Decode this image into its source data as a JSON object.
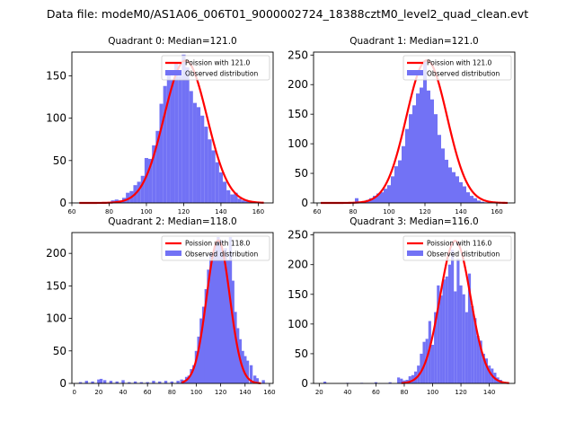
{
  "figure": {
    "suptitle": "Data file: modeM0/AS1A06_006T01_9000002724_18388cztM0_level2_quad_clean.evt"
  },
  "colors": {
    "hist": "#7272f5",
    "curve": "#ff0000",
    "axis": "#000000"
  },
  "chart_data": [
    {
      "type": "bar",
      "title": "Quadrant 0: Median=121.0",
      "xlim": [
        60,
        168
      ],
      "ylim": [
        0,
        178
      ],
      "xticks": [
        60,
        80,
        100,
        120,
        140,
        160
      ],
      "yticks": [
        0,
        50,
        100,
        150
      ],
      "legend": {
        "placement": "top-right",
        "curve_label": "Poission with 121.0",
        "hist_label": "Observed distribution"
      },
      "poisson_mean": 121.0,
      "curve_peak": 168,
      "curve_sigma": 11.5,
      "curve_x_range": [
        64,
        163
      ],
      "bin_width": 2,
      "bins_x": [
        78,
        80,
        82,
        84,
        86,
        88,
        90,
        92,
        94,
        96,
        98,
        100,
        102,
        104,
        106,
        108,
        110,
        112,
        114,
        116,
        118,
        120,
        122,
        124,
        126,
        128,
        130,
        132,
        134,
        136,
        138,
        140,
        142,
        144,
        146,
        148,
        150,
        152,
        154,
        156,
        158,
        160
      ],
      "counts": [
        0,
        1,
        3,
        4,
        3,
        6,
        12,
        14,
        21,
        25,
        32,
        53,
        52,
        68,
        85,
        117,
        138,
        151,
        145,
        166,
        150,
        175,
        160,
        132,
        118,
        113,
        103,
        90,
        75,
        62,
        48,
        36,
        25,
        15,
        10,
        12,
        5,
        3,
        2,
        1,
        0,
        0
      ]
    },
    {
      "type": "bar",
      "title": "Quadrant 1: Median=121.0",
      "xlim": [
        58,
        170
      ],
      "ylim": [
        0,
        255
      ],
      "xticks": [
        60,
        80,
        100,
        120,
        140,
        160
      ],
      "yticks": [
        0,
        50,
        100,
        150,
        200,
        250
      ],
      "legend": {
        "placement": "top-right",
        "curve_label": "Poission with 121.0",
        "hist_label": "Observed distribution"
      },
      "poisson_mean": 121.0,
      "curve_peak": 241,
      "curve_sigma": 11.3,
      "curve_x_range": [
        62,
        166
      ],
      "bin_width": 2,
      "bins_x": [
        82,
        84,
        86,
        88,
        90,
        92,
        94,
        96,
        98,
        100,
        102,
        104,
        106,
        108,
        110,
        112,
        114,
        116,
        118,
        120,
        122,
        124,
        126,
        128,
        130,
        132,
        134,
        136,
        138,
        140,
        142,
        144,
        146,
        148,
        150,
        152,
        154,
        156
      ],
      "counts": [
        8,
        0,
        2,
        5,
        8,
        12,
        16,
        18,
        24,
        30,
        45,
        62,
        72,
        96,
        125,
        150,
        165,
        185,
        195,
        240,
        190,
        175,
        150,
        115,
        92,
        73,
        60,
        52,
        45,
        35,
        28,
        18,
        12,
        8,
        4,
        2,
        1,
        0
      ]
    },
    {
      "type": "bar",
      "title": "Quadrant 2: Median=118.0",
      "xlim": [
        -2,
        163
      ],
      "ylim": [
        0,
        232
      ],
      "xticks": [
        0,
        20,
        40,
        60,
        80,
        100,
        120,
        140,
        160
      ],
      "yticks": [
        0,
        50,
        100,
        150,
        200
      ],
      "legend": {
        "placement": "top-right",
        "curve_label": "Poission with 118.0",
        "hist_label": "Observed distribution"
      },
      "poisson_mean": 118.0,
      "curve_peak": 220,
      "curve_sigma": 9.5,
      "curve_x_range": [
        88,
        153
      ],
      "bin_width": 2.5,
      "bins_x": [
        5,
        10,
        15,
        20,
        22,
        25,
        30,
        35,
        40,
        45,
        50,
        55,
        60,
        65,
        70,
        75,
        80,
        85,
        88,
        90,
        92,
        94,
        96,
        98,
        100,
        102,
        104,
        106,
        108,
        110,
        112,
        114,
        116,
        118,
        120,
        122,
        124,
        126,
        128,
        130,
        132,
        134,
        136,
        138,
        140,
        142,
        145,
        148,
        150,
        155
      ],
      "counts": [
        2,
        4,
        3,
        6,
        7,
        5,
        4,
        3,
        5,
        2,
        3,
        2,
        2,
        4,
        3,
        4,
        3,
        4,
        6,
        5,
        10,
        12,
        22,
        28,
        50,
        72,
        100,
        118,
        145,
        175,
        200,
        195,
        212,
        225,
        220,
        200,
        208,
        190,
        225,
        158,
        110,
        85,
        68,
        50,
        42,
        35,
        28,
        12,
        8,
        5
      ]
    },
    {
      "type": "bar",
      "title": "Quadrant 3: Median=116.0",
      "xlim": [
        16,
        158
      ],
      "ylim": [
        0,
        254
      ],
      "xticks": [
        20,
        40,
        60,
        80,
        100,
        120,
        140
      ],
      "yticks": [
        0,
        50,
        100,
        150,
        200,
        250
      ],
      "legend": {
        "placement": "top-right",
        "curve_label": "Poission with 116.0",
        "hist_label": "Observed distribution"
      },
      "poisson_mean": 116.0,
      "curve_peak": 240,
      "curve_sigma": 10.8,
      "curve_x_range": [
        78,
        154
      ],
      "bin_width": 2,
      "bins_x": [
        24,
        40,
        50,
        60,
        70,
        76,
        78,
        80,
        82,
        84,
        86,
        88,
        90,
        92,
        94,
        96,
        98,
        100,
        102,
        104,
        106,
        108,
        110,
        112,
        114,
        116,
        118,
        120,
        122,
        124,
        126,
        128,
        130,
        132,
        134,
        136,
        138,
        140,
        142,
        144,
        146,
        148,
        150,
        152
      ],
      "counts": [
        3,
        1,
        1,
        2,
        2,
        10,
        8,
        5,
        6,
        12,
        14,
        20,
        30,
        50,
        70,
        75,
        105,
        65,
        120,
        165,
        148,
        175,
        180,
        200,
        225,
        155,
        210,
        165,
        150,
        120,
        185,
        130,
        110,
        80,
        72,
        50,
        42,
        30,
        25,
        18,
        10,
        6,
        3,
        1
      ]
    }
  ]
}
